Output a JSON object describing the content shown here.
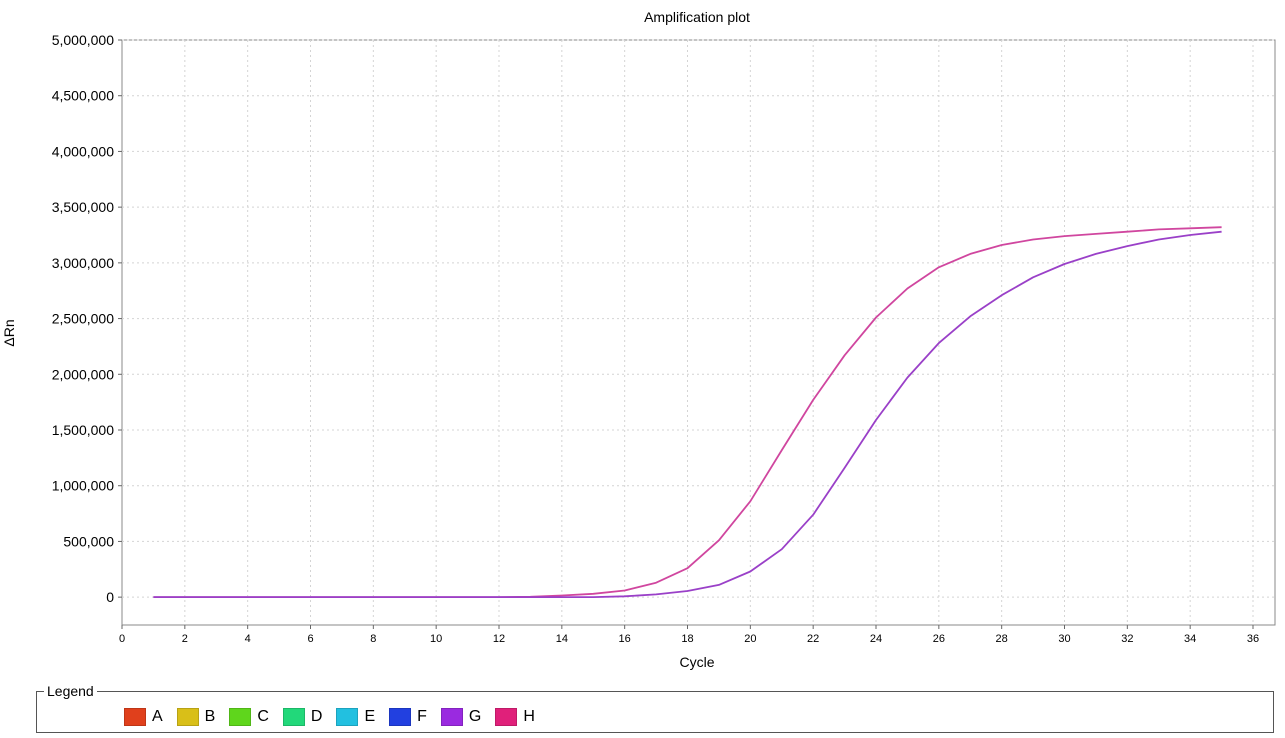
{
  "chart_data": {
    "type": "line",
    "title": "Amplification plot",
    "xlabel": "Cycle",
    "ylabel": "ΔRn",
    "xlim": [
      0,
      36.7
    ],
    "ylim": [
      -250000,
      5000000
    ],
    "xticks": [
      0,
      2,
      4,
      6,
      8,
      10,
      12,
      14,
      16,
      18,
      20,
      22,
      24,
      26,
      28,
      30,
      32,
      34,
      36
    ],
    "yticks": [
      0,
      500000,
      1000000,
      1500000,
      2000000,
      2500000,
      3000000,
      3500000,
      4000000,
      4500000,
      5000000
    ],
    "ytick_labels": [
      "0",
      "500,000",
      "1,000,000",
      "1,500,000",
      "2,000,000",
      "2,500,000",
      "3,000,000",
      "3,500,000",
      "4,000,000",
      "4,500,000",
      "5,000,000"
    ],
    "grid": true,
    "x": [
      1,
      2,
      3,
      4,
      5,
      6,
      7,
      8,
      9,
      10,
      11,
      12,
      13,
      14,
      15,
      16,
      17,
      18,
      19,
      20,
      21,
      22,
      23,
      24,
      25,
      26,
      27,
      28,
      29,
      30,
      31,
      32,
      33,
      34,
      35
    ],
    "series": [
      {
        "color": "#d0469f",
        "values": [
          0,
          0,
          0,
          0,
          0,
          0,
          0,
          0,
          0,
          0,
          0,
          0,
          3000,
          15000,
          30000,
          60000,
          130000,
          260000,
          510000,
          860000,
          1320000,
          1770000,
          2170000,
          2510000,
          2770000,
          2960000,
          3080000,
          3160000,
          3210000,
          3240000,
          3260000,
          3280000,
          3300000,
          3310000,
          3320000
        ]
      },
      {
        "color": "#9a40c8",
        "values": [
          0,
          0,
          0,
          0,
          0,
          0,
          0,
          0,
          0,
          0,
          0,
          0,
          0,
          0,
          0,
          8000,
          25000,
          55000,
          110000,
          230000,
          430000,
          740000,
          1160000,
          1590000,
          1970000,
          2280000,
          2520000,
          2710000,
          2870000,
          2990000,
          3080000,
          3150000,
          3210000,
          3250000,
          3280000
        ]
      }
    ]
  },
  "legend": {
    "title": "Legend",
    "items": [
      {
        "label": "A",
        "color": "#e0401c"
      },
      {
        "label": "B",
        "color": "#d9bf18"
      },
      {
        "label": "C",
        "color": "#5fd61c"
      },
      {
        "label": "D",
        "color": "#22d87a"
      },
      {
        "label": "E",
        "color": "#22c0e0"
      },
      {
        "label": "F",
        "color": "#2240e0"
      },
      {
        "label": "G",
        "color": "#9a2ae0"
      },
      {
        "label": "H",
        "color": "#e0207a"
      }
    ]
  }
}
